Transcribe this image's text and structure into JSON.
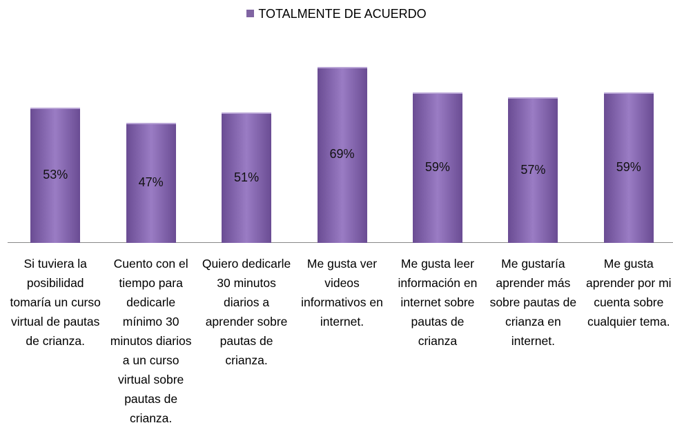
{
  "chart_data": {
    "type": "bar",
    "categories": [
      "Si tuviera la posibilidad tomaría un curso virtual de pautas de crianza.",
      "Cuento con el tiempo para dedicarle mínimo 30 minutos diarios a un curso virtual sobre pautas de crianza.",
      "Quiero dedicarle 30 minutos diarios a aprender sobre pautas de crianza.",
      "Me gusta ver videos informativos en internet.",
      "Me gusta leer información en internet sobre pautas de crianza",
      "Me gustaría aprender más sobre pautas de crianza en internet.",
      "Me gusta aprender por mi cuenta sobre cualquier tema."
    ],
    "series": [
      {
        "name": "TOTALMENTE DE ACUERDO",
        "color": "#8064a2",
        "values": [
          53,
          47,
          51,
          69,
          59,
          57,
          59
        ],
        "value_labels": [
          "53%",
          "47%",
          "51%",
          "69%",
          "59%",
          "57%",
          "59%"
        ]
      }
    ],
    "ylim": [
      0,
      80
    ],
    "legend": "top"
  }
}
